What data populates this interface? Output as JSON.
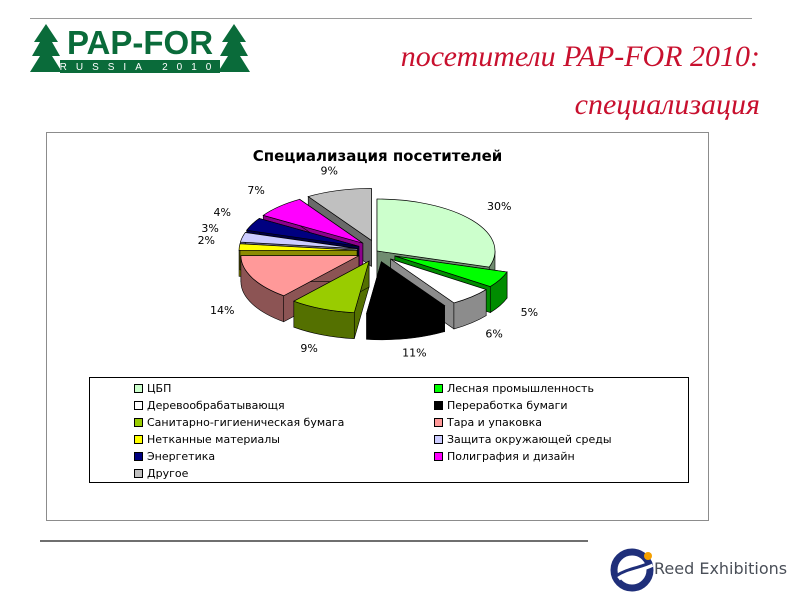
{
  "logo": {
    "text": "PAP-FOR",
    "subtext": "RUSSIA 2010"
  },
  "page": {
    "title_line1": "посетители PAP-FOR 2010:",
    "title_line2": "специализация"
  },
  "footer": {
    "brand": "Reed Exhibitions"
  },
  "chart_data": {
    "type": "pie",
    "title": "Специализация посетителей",
    "legend_position": "bottom",
    "slices": [
      {
        "name": "ЦБП",
        "value": 30,
        "label": "30%",
        "color": "#ccffcc",
        "exploded": false
      },
      {
        "name": "Лесная промышленность",
        "value": 5,
        "label": "5%",
        "color": "#00ff00",
        "exploded": true
      },
      {
        "name": "Деревообрабатывающя",
        "value": 6,
        "label": "6%",
        "color": "#ffffff",
        "exploded": true
      },
      {
        "name": "Переработка бумаги",
        "value": 11,
        "label": "11%",
        "color": "#000000",
        "exploded": true
      },
      {
        "name": "Санитарно-гигиеническая бумага",
        "value": 9,
        "label": "9%",
        "color": "#99cc00",
        "exploded": true
      },
      {
        "name": "Тара и упаковка",
        "value": 14,
        "label": "14%",
        "color": "#ff9999",
        "exploded": true
      },
      {
        "name": "Нетканные материалы",
        "value": 2,
        "label": "2%",
        "color": "#ffff00",
        "exploded": true
      },
      {
        "name": "Защита окружающей среды",
        "value": 3,
        "label": "3%",
        "color": "#ccccff",
        "exploded": true
      },
      {
        "name": "Энергетика",
        "value": 4,
        "label": "4%",
        "color": "#000080",
        "exploded": true
      },
      {
        "name": "Полиграфия и дизайн",
        "value": 7,
        "label": "7%",
        "color": "#ff00ff",
        "exploded": true
      },
      {
        "name": "Другое",
        "value": 9,
        "label": "9%",
        "color": "#c0c0c0",
        "exploded": true
      }
    ]
  }
}
